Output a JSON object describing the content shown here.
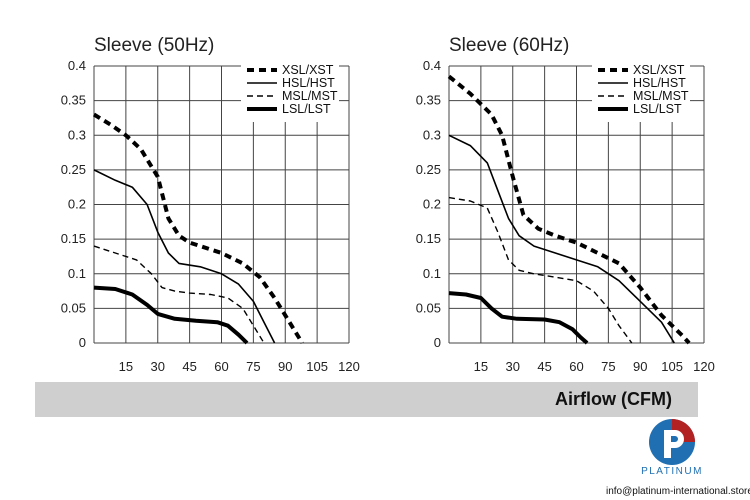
{
  "chart_data": [
    {
      "type": "line",
      "title": "Sleeve (50Hz)",
      "xlim": [
        0,
        120
      ],
      "ylim": [
        0,
        0.4
      ],
      "x_ticks": [
        "15",
        "30",
        "45",
        "60",
        "75",
        "90",
        "105",
        "120"
      ],
      "y_ticks": [
        "0.4",
        "0.35",
        "0.3",
        "0.25",
        "0.2",
        "0.15",
        "0.1",
        "0.05",
        "0"
      ],
      "grid": true,
      "legend_position": "top-right",
      "series": [
        {
          "name": "XSL/XST",
          "style": "bold-dashed",
          "points": [
            [
              0,
              0.33
            ],
            [
              8,
              0.315
            ],
            [
              15,
              0.3
            ],
            [
              22,
              0.28
            ],
            [
              30,
              0.24
            ],
            [
              35,
              0.18
            ],
            [
              40,
              0.155
            ],
            [
              45,
              0.145
            ],
            [
              50,
              0.14
            ],
            [
              60,
              0.13
            ],
            [
              70,
              0.115
            ],
            [
              78,
              0.095
            ],
            [
              85,
              0.065
            ],
            [
              92,
              0.03
            ],
            [
              98,
              0.0
            ]
          ]
        },
        {
          "name": "HSL/HST",
          "style": "solid",
          "points": [
            [
              0,
              0.25
            ],
            [
              10,
              0.235
            ],
            [
              18,
              0.225
            ],
            [
              25,
              0.2
            ],
            [
              30,
              0.16
            ],
            [
              35,
              0.13
            ],
            [
              40,
              0.115
            ],
            [
              50,
              0.11
            ],
            [
              60,
              0.1
            ],
            [
              68,
              0.085
            ],
            [
              75,
              0.06
            ],
            [
              80,
              0.03
            ],
            [
              85,
              0.0
            ]
          ]
        },
        {
          "name": "MSL/MST",
          "style": "dashed",
          "points": [
            [
              0,
              0.14
            ],
            [
              10,
              0.13
            ],
            [
              20,
              0.12
            ],
            [
              27,
              0.1
            ],
            [
              32,
              0.08
            ],
            [
              38,
              0.075
            ],
            [
              45,
              0.072
            ],
            [
              55,
              0.07
            ],
            [
              63,
              0.065
            ],
            [
              70,
              0.05
            ],
            [
              75,
              0.025
            ],
            [
              80,
              0.0
            ]
          ]
        },
        {
          "name": "LSL/LST",
          "style": "bold-solid",
          "points": [
            [
              0,
              0.08
            ],
            [
              10,
              0.078
            ],
            [
              18,
              0.07
            ],
            [
              25,
              0.055
            ],
            [
              30,
              0.042
            ],
            [
              38,
              0.035
            ],
            [
              48,
              0.032
            ],
            [
              58,
              0.03
            ],
            [
              63,
              0.025
            ],
            [
              68,
              0.012
            ],
            [
              72,
              0.0
            ]
          ]
        }
      ]
    },
    {
      "type": "line",
      "title": "Sleeve (60Hz)",
      "xlim": [
        0,
        120
      ],
      "ylim": [
        0,
        0.4
      ],
      "x_ticks": [
        "15",
        "30",
        "45",
        "60",
        "75",
        "90",
        "105",
        "120"
      ],
      "y_ticks": [
        "0.4",
        "0.35",
        "0.3",
        "0.25",
        "0.2",
        "0.15",
        "0.1",
        "0.05",
        "0"
      ],
      "grid": true,
      "legend_position": "top-right",
      "series": [
        {
          "name": "XSL/XST",
          "style": "bold-dashed",
          "points": [
            [
              0,
              0.385
            ],
            [
              10,
              0.36
            ],
            [
              20,
              0.33
            ],
            [
              25,
              0.3
            ],
            [
              30,
              0.24
            ],
            [
              35,
              0.185
            ],
            [
              42,
              0.165
            ],
            [
              50,
              0.155
            ],
            [
              60,
              0.145
            ],
            [
              70,
              0.13
            ],
            [
              80,
              0.115
            ],
            [
              90,
              0.08
            ],
            [
              100,
              0.04
            ],
            [
              110,
              0.01
            ],
            [
              113,
              0.0
            ]
          ]
        },
        {
          "name": "HSL/HST",
          "style": "solid",
          "points": [
            [
              0,
              0.3
            ],
            [
              10,
              0.285
            ],
            [
              18,
              0.26
            ],
            [
              23,
              0.22
            ],
            [
              28,
              0.18
            ],
            [
              33,
              0.155
            ],
            [
              40,
              0.14
            ],
            [
              50,
              0.13
            ],
            [
              60,
              0.12
            ],
            [
              70,
              0.11
            ],
            [
              80,
              0.09
            ],
            [
              90,
              0.06
            ],
            [
              100,
              0.03
            ],
            [
              106,
              0.0
            ]
          ]
        },
        {
          "name": "MSL/MST",
          "style": "dashed",
          "points": [
            [
              0,
              0.21
            ],
            [
              10,
              0.205
            ],
            [
              18,
              0.195
            ],
            [
              23,
              0.16
            ],
            [
              28,
              0.12
            ],
            [
              33,
              0.105
            ],
            [
              40,
              0.1
            ],
            [
              50,
              0.095
            ],
            [
              60,
              0.09
            ],
            [
              68,
              0.075
            ],
            [
              75,
              0.05
            ],
            [
              80,
              0.025
            ],
            [
              86,
              0.0
            ]
          ]
        },
        {
          "name": "LSL/LST",
          "style": "bold-solid",
          "points": [
            [
              0,
              0.072
            ],
            [
              8,
              0.07
            ],
            [
              15,
              0.065
            ],
            [
              20,
              0.05
            ],
            [
              25,
              0.038
            ],
            [
              32,
              0.035
            ],
            [
              45,
              0.034
            ],
            [
              52,
              0.03
            ],
            [
              58,
              0.02
            ],
            [
              62,
              0.008
            ],
            [
              65,
              0.0
            ]
          ]
        }
      ]
    }
  ],
  "footer": {
    "axis_title": "Airflow (CFM)",
    "brand": "PLATINUM",
    "email": "info@platinum-international.store",
    "brand_color": "#1f6fb2"
  }
}
